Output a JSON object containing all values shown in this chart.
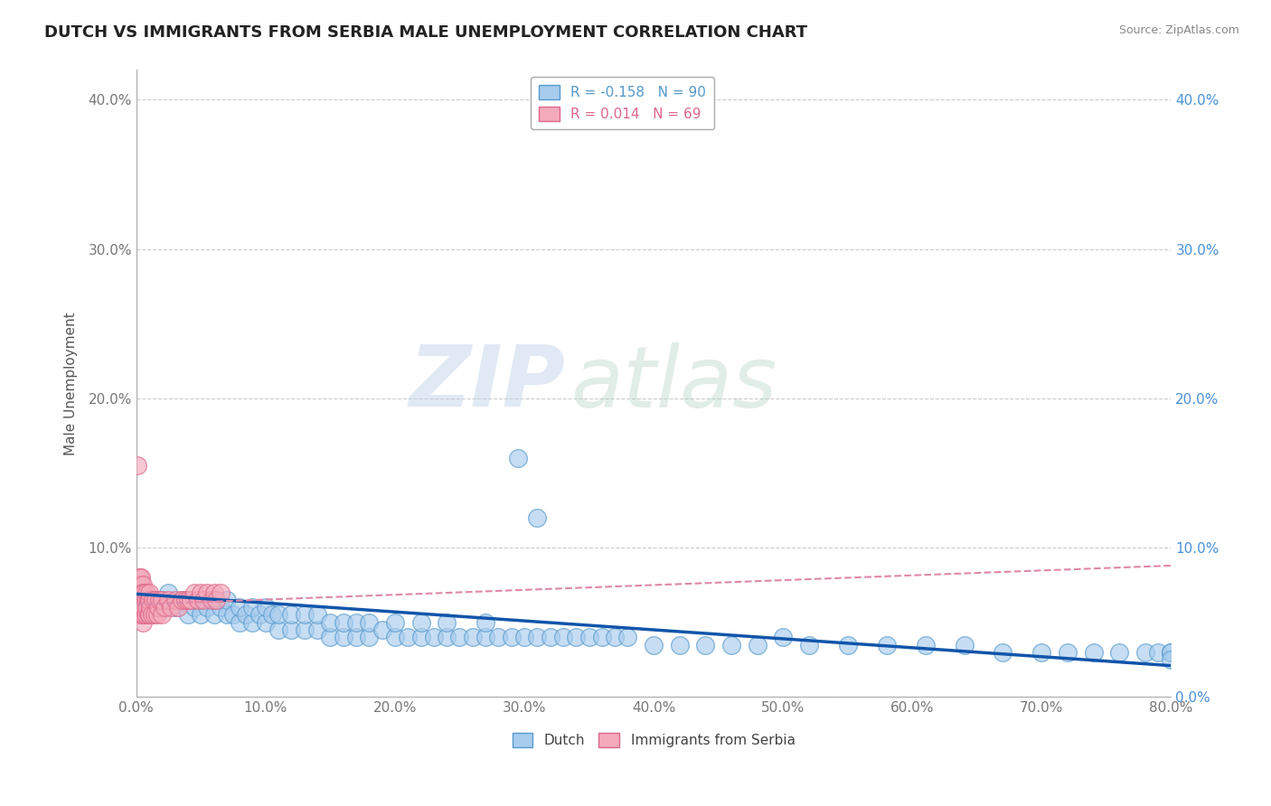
{
  "title": "DUTCH VS IMMIGRANTS FROM SERBIA MALE UNEMPLOYMENT CORRELATION CHART",
  "source": "Source: ZipAtlas.com",
  "ylabel": "Male Unemployment",
  "xlim": [
    0,
    0.8
  ],
  "ylim": [
    0,
    0.42
  ],
  "xticks": [
    0.0,
    0.1,
    0.2,
    0.3,
    0.4,
    0.5,
    0.6,
    0.7,
    0.8
  ],
  "yticks": [
    0.0,
    0.1,
    0.2,
    0.3,
    0.4
  ],
  "dutch_color": "#A8CCEE",
  "serbia_color": "#F4AABB",
  "dutch_edge_color": "#5599CC",
  "serbia_edge_color": "#DD6688",
  "dutch_line_color": "#1155AA",
  "serbia_line_color": "#DD88AA",
  "R_dutch": -0.158,
  "N_dutch": 90,
  "R_serbia": 0.014,
  "N_serbia": 69,
  "watermark_zip": "ZIP",
  "watermark_atlas": "atlas",
  "legend_label_dutch": "Dutch",
  "legend_label_serbia": "Immigrants from Serbia",
  "background_color": "#ffffff",
  "grid_color": "#cccccc",
  "dutch_x": [
    0.005,
    0.01,
    0.02,
    0.025,
    0.03,
    0.035,
    0.04,
    0.04,
    0.045,
    0.05,
    0.05,
    0.055,
    0.06,
    0.06,
    0.065,
    0.07,
    0.07,
    0.075,
    0.08,
    0.08,
    0.085,
    0.09,
    0.09,
    0.095,
    0.1,
    0.1,
    0.105,
    0.11,
    0.11,
    0.12,
    0.12,
    0.13,
    0.13,
    0.14,
    0.14,
    0.15,
    0.15,
    0.16,
    0.16,
    0.17,
    0.17,
    0.18,
    0.18,
    0.19,
    0.2,
    0.2,
    0.21,
    0.22,
    0.22,
    0.23,
    0.24,
    0.24,
    0.25,
    0.26,
    0.27,
    0.27,
    0.28,
    0.29,
    0.3,
    0.31,
    0.32,
    0.33,
    0.34,
    0.35,
    0.36,
    0.37,
    0.38,
    0.4,
    0.42,
    0.44,
    0.46,
    0.48,
    0.5,
    0.52,
    0.55,
    0.58,
    0.61,
    0.64,
    0.67,
    0.7,
    0.72,
    0.74,
    0.76,
    0.78,
    0.79,
    0.8,
    0.8,
    0.8,
    0.295,
    0.31
  ],
  "dutch_y": [
    0.07,
    0.065,
    0.065,
    0.07,
    0.06,
    0.065,
    0.055,
    0.065,
    0.06,
    0.055,
    0.065,
    0.06,
    0.055,
    0.065,
    0.06,
    0.055,
    0.065,
    0.055,
    0.05,
    0.06,
    0.055,
    0.05,
    0.06,
    0.055,
    0.05,
    0.06,
    0.055,
    0.045,
    0.055,
    0.045,
    0.055,
    0.045,
    0.055,
    0.045,
    0.055,
    0.04,
    0.05,
    0.04,
    0.05,
    0.04,
    0.05,
    0.04,
    0.05,
    0.045,
    0.04,
    0.05,
    0.04,
    0.04,
    0.05,
    0.04,
    0.04,
    0.05,
    0.04,
    0.04,
    0.04,
    0.05,
    0.04,
    0.04,
    0.04,
    0.04,
    0.04,
    0.04,
    0.04,
    0.04,
    0.04,
    0.04,
    0.04,
    0.035,
    0.035,
    0.035,
    0.035,
    0.035,
    0.04,
    0.035,
    0.035,
    0.035,
    0.035,
    0.035,
    0.03,
    0.03,
    0.03,
    0.03,
    0.03,
    0.03,
    0.03,
    0.03,
    0.03,
    0.025,
    0.16,
    0.12
  ],
  "serbia_x": [
    0.001,
    0.001,
    0.001,
    0.001,
    0.002,
    0.002,
    0.002,
    0.002,
    0.002,
    0.003,
    0.003,
    0.003,
    0.003,
    0.003,
    0.004,
    0.004,
    0.004,
    0.004,
    0.004,
    0.005,
    0.005,
    0.005,
    0.005,
    0.005,
    0.005,
    0.005,
    0.005,
    0.005,
    0.005,
    0.006,
    0.006,
    0.007,
    0.007,
    0.008,
    0.008,
    0.009,
    0.009,
    0.01,
    0.01,
    0.01,
    0.011,
    0.012,
    0.013,
    0.014,
    0.015,
    0.016,
    0.017,
    0.018,
    0.02,
    0.02,
    0.022,
    0.025,
    0.027,
    0.03,
    0.032,
    0.035,
    0.038,
    0.04,
    0.042,
    0.045,
    0.048,
    0.05,
    0.052,
    0.055,
    0.058,
    0.06,
    0.062,
    0.065,
    0.001
  ],
  "serbia_y": [
    0.06,
    0.065,
    0.07,
    0.075,
    0.055,
    0.065,
    0.07,
    0.075,
    0.08,
    0.055,
    0.065,
    0.07,
    0.075,
    0.08,
    0.055,
    0.065,
    0.07,
    0.075,
    0.08,
    0.05,
    0.055,
    0.06,
    0.065,
    0.07,
    0.075,
    0.055,
    0.06,
    0.065,
    0.07,
    0.06,
    0.07,
    0.055,
    0.065,
    0.06,
    0.07,
    0.055,
    0.065,
    0.055,
    0.065,
    0.07,
    0.06,
    0.055,
    0.065,
    0.055,
    0.065,
    0.055,
    0.06,
    0.065,
    0.055,
    0.065,
    0.06,
    0.065,
    0.06,
    0.065,
    0.06,
    0.065,
    0.065,
    0.065,
    0.065,
    0.07,
    0.065,
    0.07,
    0.065,
    0.07,
    0.065,
    0.07,
    0.065,
    0.07,
    0.155
  ],
  "dutch_trend_x0": 0.0,
  "dutch_trend_y0": 0.069,
  "dutch_trend_x1": 0.8,
  "dutch_trend_y1": 0.021,
  "serbia_trend_x0": 0.0,
  "serbia_trend_y0": 0.062,
  "serbia_trend_x1": 0.8,
  "serbia_trend_y1": 0.088
}
